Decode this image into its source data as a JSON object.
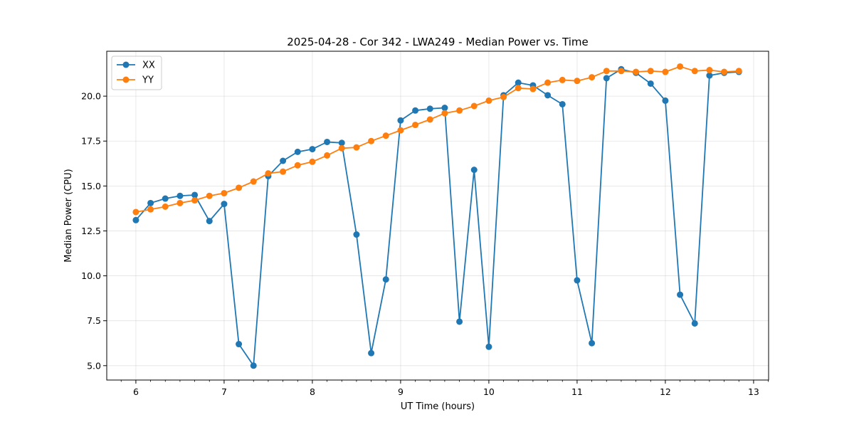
{
  "chart_data": {
    "type": "line",
    "title": "2025-04-28 - Cor 342 - LWA249 - Median Power vs. Time",
    "xlabel": "UT Time (hours)",
    "ylabel": "Median Power (CPU)",
    "xlim": [
      5.67,
      13.17
    ],
    "ylim": [
      4.2,
      22.5
    ],
    "xticks": [
      6,
      7,
      8,
      9,
      10,
      11,
      12,
      13
    ],
    "xtick_labels": [
      "6",
      "7",
      "8",
      "9",
      "10",
      "11",
      "12",
      "13"
    ],
    "yticks": [
      5.0,
      7.5,
      10.0,
      12.5,
      15.0,
      17.5,
      20.0
    ],
    "ytick_labels": [
      "5.0",
      "7.5",
      "10.0",
      "12.5",
      "15.0",
      "17.5",
      "20.0"
    ],
    "grid": true,
    "legend_position": "top-left",
    "x": [
      6.0,
      6.1667,
      6.3333,
      6.5,
      6.6667,
      6.8333,
      7.0,
      7.1667,
      7.3333,
      7.5,
      7.6667,
      7.8333,
      8.0,
      8.1667,
      8.3333,
      8.5,
      8.6667,
      8.8333,
      9.0,
      9.1667,
      9.3333,
      9.5,
      9.6667,
      9.8333,
      10.0,
      10.1667,
      10.3333,
      10.5,
      10.6667,
      10.8333,
      11.0,
      11.1667,
      11.3333,
      11.5,
      11.6667,
      11.8333,
      12.0,
      12.1667,
      12.3333,
      12.5,
      12.6667,
      12.8333
    ],
    "series": [
      {
        "name": "XX",
        "color": "#1f77b4",
        "values": [
          13.1,
          14.05,
          14.3,
          14.45,
          14.5,
          13.05,
          14.0,
          6.2,
          5.0,
          15.55,
          16.4,
          16.9,
          17.05,
          17.45,
          17.4,
          12.3,
          5.7,
          9.8,
          18.65,
          19.2,
          19.3,
          19.35,
          7.45,
          15.9,
          6.05,
          20.05,
          20.75,
          20.6,
          20.05,
          19.55,
          9.75,
          6.25,
          21.0,
          21.5,
          21.3,
          20.7,
          19.75,
          8.95,
          7.35,
          21.15,
          21.3,
          21.35
        ]
      },
      {
        "name": "YY",
        "color": "#ff7f0e",
        "values": [
          13.55,
          13.7,
          13.85,
          14.05,
          14.2,
          14.45,
          14.6,
          14.9,
          15.25,
          15.7,
          15.8,
          16.15,
          16.35,
          16.7,
          17.1,
          17.15,
          17.5,
          17.8,
          18.1,
          18.4,
          18.7,
          19.05,
          19.2,
          19.45,
          19.75,
          19.95,
          20.45,
          20.4,
          20.75,
          20.9,
          20.85,
          21.05,
          21.4,
          21.4,
          21.35,
          21.4,
          21.35,
          21.65,
          21.4,
          21.45,
          21.35,
          21.4
        ]
      }
    ]
  }
}
